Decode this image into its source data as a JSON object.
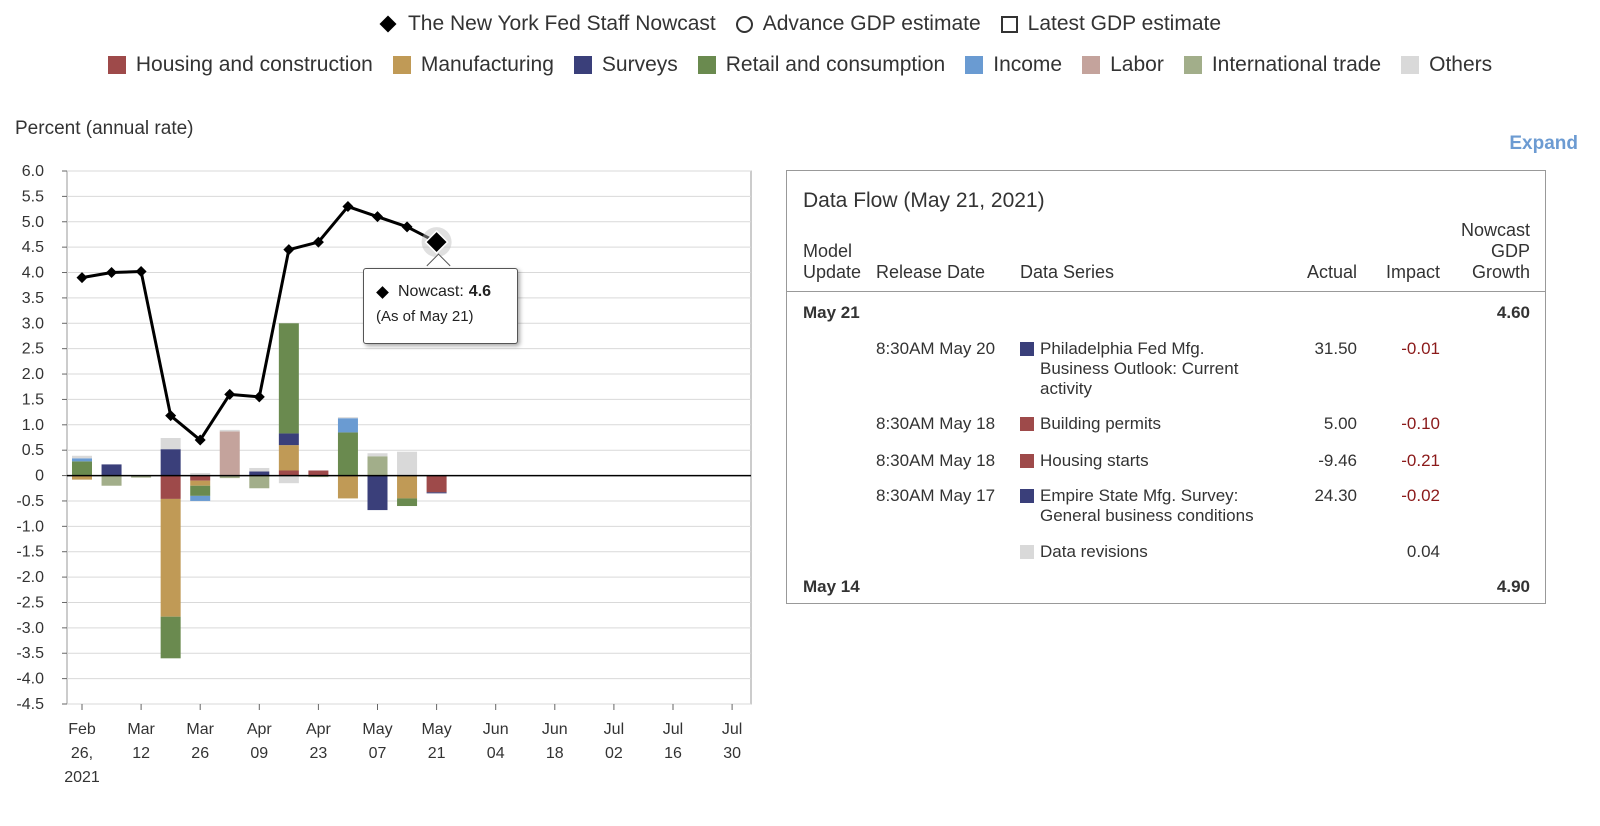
{
  "legend": {
    "series": [
      {
        "label": "The New York Fed Staff Nowcast",
        "icon": "diamond-icon"
      },
      {
        "label": "Advance GDP estimate",
        "icon": "circle-icon"
      },
      {
        "label": "Latest GDP estimate",
        "icon": "square-icon"
      }
    ],
    "categories": [
      {
        "label": "Housing and construction",
        "color": "#9e4a4a"
      },
      {
        "label": "Manufacturing",
        "color": "#c09a56"
      },
      {
        "label": "Surveys",
        "color": "#3a3f7a"
      },
      {
        "label": "Retail and consumption",
        "color": "#6a8a4f"
      },
      {
        "label": "Income",
        "color": "#6a9bd2"
      },
      {
        "label": "Labor",
        "color": "#c4a39c"
      },
      {
        "label": "International trade",
        "color": "#a2ae8a"
      },
      {
        "label": "Others",
        "color": "#d9d9d9"
      }
    ]
  },
  "axis_unit_label": "Percent (annual rate)",
  "expand_label": "Expand",
  "chart_data": {
    "type": "bar",
    "title": "",
    "ylabel": "Percent (annual rate)",
    "ylim": [
      -4.5,
      6.0
    ],
    "yticks": [
      "6.0",
      "5.5",
      "5.0",
      "4.5",
      "4.0",
      "3.5",
      "3.0",
      "2.5",
      "2.0",
      "1.5",
      "1.0",
      "0.5",
      "0",
      "-0.5",
      "-1.0",
      "-1.5",
      "-2.0",
      "-2.5",
      "-3.0",
      "-3.5",
      "-4.0",
      "-4.5"
    ],
    "xtick_labels": [
      [
        "Feb",
        "26,",
        "2021"
      ],
      [
        "Mar",
        "12"
      ],
      [
        "Mar",
        "26"
      ],
      [
        "Apr",
        "09"
      ],
      [
        "Apr",
        "23"
      ],
      [
        "May",
        "07"
      ],
      [
        "May",
        "21"
      ],
      [
        "Jun",
        "04"
      ],
      [
        "Jun",
        "18"
      ],
      [
        "Jul",
        "02"
      ],
      [
        "Jul",
        "16"
      ],
      [
        "Jul",
        "30"
      ]
    ],
    "nowcast_line": {
      "name": "The New York Fed Staff Nowcast",
      "weeks": [
        0,
        1,
        2,
        3,
        4,
        5,
        6,
        7,
        8,
        9,
        10,
        11,
        12
      ],
      "values": [
        3.9,
        4.0,
        4.02,
        1.18,
        0.7,
        1.6,
        1.55,
        4.45,
        4.6,
        5.3,
        5.1,
        4.9,
        4.6
      ]
    },
    "stacked_impacts": [
      {
        "week": 0,
        "segments": [
          [
            "Retail and consumption",
            0.28
          ],
          [
            "Income",
            0.06
          ],
          [
            "Others",
            0.05
          ],
          [
            "Manufacturing",
            -0.08
          ]
        ]
      },
      {
        "week": 1,
        "segments": [
          [
            "Surveys",
            0.22
          ],
          [
            "International trade",
            -0.2
          ]
        ]
      },
      {
        "week": 2,
        "segments": [
          [
            "International trade",
            -0.04
          ]
        ]
      },
      {
        "week": 3,
        "segments": [
          [
            "Surveys",
            0.52
          ],
          [
            "Others",
            0.22
          ],
          [
            "Housing and construction",
            -0.46
          ],
          [
            "Manufacturing",
            -2.32
          ],
          [
            "Retail and consumption",
            -0.82
          ]
        ]
      },
      {
        "week": 4,
        "segments": [
          [
            "Others",
            0.05
          ],
          [
            "Housing and construction",
            -0.1
          ],
          [
            "Manufacturing",
            -0.1
          ],
          [
            "Retail and consumption",
            -0.2
          ],
          [
            "Income",
            -0.1
          ]
        ]
      },
      {
        "week": 5,
        "segments": [
          [
            "Labor",
            0.87
          ],
          [
            "Others",
            0.03
          ],
          [
            "International trade",
            -0.05
          ]
        ]
      },
      {
        "week": 6,
        "segments": [
          [
            "Surveys",
            0.08
          ],
          [
            "Others",
            0.07
          ],
          [
            "International trade",
            -0.25
          ]
        ]
      },
      {
        "week": 7,
        "segments": [
          [
            "Housing and construction",
            0.1
          ],
          [
            "Manufacturing",
            0.5
          ],
          [
            "Surveys",
            0.23
          ],
          [
            "Retail and consumption",
            2.17
          ],
          [
            "Others",
            -0.15
          ]
        ]
      },
      {
        "week": 8,
        "segments": [
          [
            "Housing and construction",
            0.1
          ],
          [
            "International trade",
            -0.03
          ]
        ]
      },
      {
        "week": 9,
        "segments": [
          [
            "Retail and consumption",
            0.85
          ],
          [
            "Income",
            0.28
          ],
          [
            "Others",
            0.02
          ],
          [
            "Manufacturing",
            -0.45
          ]
        ]
      },
      {
        "week": 10,
        "segments": [
          [
            "International trade",
            0.38
          ],
          [
            "Others",
            0.06
          ],
          [
            "Surveys",
            -0.68
          ]
        ]
      },
      {
        "week": 11,
        "segments": [
          [
            "Others",
            0.47
          ],
          [
            "Manufacturing",
            -0.45
          ],
          [
            "Retail and consumption",
            -0.15
          ]
        ]
      },
      {
        "week": 12,
        "segments": [
          [
            "Housing and construction",
            -0.33
          ],
          [
            "Surveys",
            -0.02
          ]
        ]
      }
    ],
    "tooltip": {
      "label": "Nowcast:",
      "value": "4.6",
      "note": "(As of May 21)"
    }
  },
  "data_flow": {
    "title": "Data Flow (May 21, 2021)",
    "headers": {
      "model_update": [
        "Model",
        "Update"
      ],
      "release_date": "Release Date",
      "data_series": "Data Series",
      "actual": "Actual",
      "impact": "Impact",
      "nowcast": [
        "Nowcast",
        "GDP",
        "Growth"
      ]
    },
    "update_current": {
      "date": "May 21",
      "nowcast": "4.60"
    },
    "rows": [
      {
        "release": "8:30AM May 20",
        "series": [
          "Philadelphia Fed Mfg.",
          "Business Outlook: Current",
          "activity"
        ],
        "color": "#3a3f7a",
        "actual": "31.50",
        "impact": "-0.01"
      },
      {
        "release": "8:30AM May 18",
        "series": [
          "Building permits"
        ],
        "color": "#9e4a4a",
        "actual": "5.00",
        "impact": "-0.10"
      },
      {
        "release": "8:30AM May 18",
        "series": [
          "Housing starts"
        ],
        "color": "#9e4a4a",
        "actual": "-9.46",
        "impact": "-0.21"
      },
      {
        "release": "8:30AM May 17",
        "series": [
          "Empire State Mfg. Survey:",
          "General business conditions"
        ],
        "color": "#3a3f7a",
        "actual": "24.30",
        "impact": "-0.02"
      },
      {
        "release": "",
        "series": [
          "Data revisions"
        ],
        "color": "#d9d9d9",
        "actual": "",
        "impact": "0.04"
      }
    ],
    "update_previous": {
      "date": "May 14",
      "nowcast": "4.90"
    }
  }
}
